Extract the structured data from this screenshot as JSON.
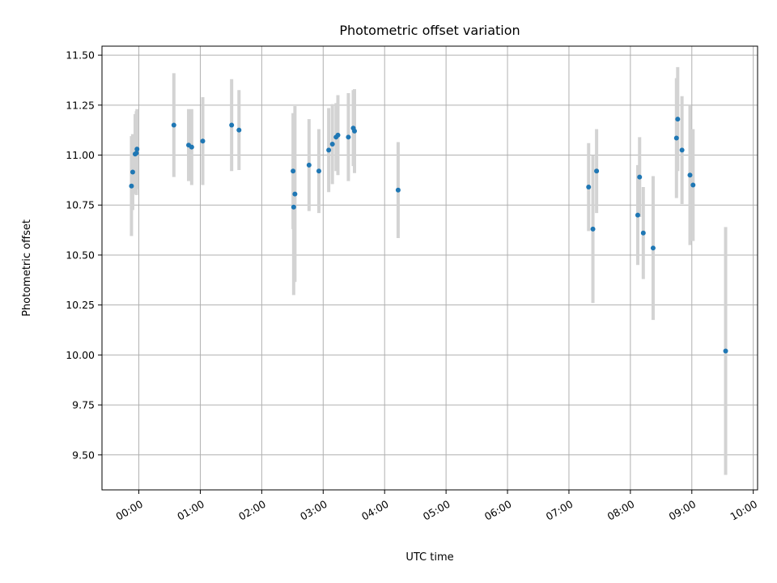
{
  "chart_data": {
    "type": "scatter",
    "title": "Photometric offset variation",
    "xlabel": "UTC time",
    "ylabel": "Photometric offset",
    "x_unit": "hours UTC",
    "xlim": [
      -0.6,
      10.07
    ],
    "ylim": [
      9.325,
      11.545
    ],
    "grid": true,
    "x_tick_values": [
      0,
      1,
      2,
      3,
      4,
      5,
      6,
      7,
      8,
      9,
      10
    ],
    "x_tick_labels": [
      "00:00",
      "01:00",
      "02:00",
      "03:00",
      "04:00",
      "05:00",
      "06:00",
      "07:00",
      "08:00",
      "09:00",
      "10:00"
    ],
    "y_tick_values": [
      9.5,
      9.75,
      10.0,
      10.25,
      10.5,
      10.75,
      11.0,
      11.25,
      11.5
    ],
    "y_tick_labels": [
      "9.50",
      "9.75",
      "10.00",
      "10.25",
      "10.50",
      "10.75",
      "11.00",
      "11.25",
      "11.50"
    ],
    "point_color": "#1f77b4",
    "errorbar_color": "#d3d3d3",
    "points": [
      {
        "x": -0.12,
        "y": 10.845,
        "err": 0.25
      },
      {
        "x": -0.1,
        "y": 10.915,
        "err": 0.19
      },
      {
        "x": -0.06,
        "y": 11.005,
        "err": 0.2
      },
      {
        "x": -0.04,
        "y": 11.01,
        "err": 0.21
      },
      {
        "x": -0.03,
        "y": 11.03,
        "err": 0.2
      },
      {
        "x": 0.57,
        "y": 11.15,
        "err": 0.26
      },
      {
        "x": 0.81,
        "y": 11.05,
        "err": 0.18
      },
      {
        "x": 0.86,
        "y": 11.04,
        "err": 0.19
      },
      {
        "x": 1.04,
        "y": 11.07,
        "err": 0.22
      },
      {
        "x": 1.51,
        "y": 11.15,
        "err": 0.23
      },
      {
        "x": 1.63,
        "y": 11.125,
        "err": 0.2
      },
      {
        "x": 2.51,
        "y": 10.92,
        "err": 0.29
      },
      {
        "x": 2.52,
        "y": 10.74,
        "err": 0.44
      },
      {
        "x": 2.54,
        "y": 10.805,
        "err": 0.44
      },
      {
        "x": 2.77,
        "y": 10.95,
        "err": 0.23
      },
      {
        "x": 2.93,
        "y": 10.92,
        "err": 0.21
      },
      {
        "x": 3.09,
        "y": 11.025,
        "err": 0.21
      },
      {
        "x": 3.15,
        "y": 11.055,
        "err": 0.2
      },
      {
        "x": 3.21,
        "y": 11.09,
        "err": 0.17
      },
      {
        "x": 3.24,
        "y": 11.1,
        "err": 0.2
      },
      {
        "x": 3.41,
        "y": 11.09,
        "err": 0.22
      },
      {
        "x": 3.49,
        "y": 11.135,
        "err": 0.19
      },
      {
        "x": 3.51,
        "y": 11.12,
        "err": 0.21
      },
      {
        "x": 4.22,
        "y": 10.825,
        "err": 0.24
      },
      {
        "x": 7.32,
        "y": 10.84,
        "err": 0.22
      },
      {
        "x": 7.39,
        "y": 10.63,
        "err": 0.37
      },
      {
        "x": 7.45,
        "y": 10.92,
        "err": 0.21
      },
      {
        "x": 8.12,
        "y": 10.7,
        "err": 0.25
      },
      {
        "x": 8.15,
        "y": 10.89,
        "err": 0.2
      },
      {
        "x": 8.21,
        "y": 10.61,
        "err": 0.23
      },
      {
        "x": 8.37,
        "y": 10.535,
        "err": 0.36
      },
      {
        "x": 8.75,
        "y": 11.085,
        "err": 0.3
      },
      {
        "x": 8.77,
        "y": 11.18,
        "err": 0.26
      },
      {
        "x": 8.84,
        "y": 11.025,
        "err": 0.27
      },
      {
        "x": 8.97,
        "y": 10.9,
        "err": 0.35
      },
      {
        "x": 9.02,
        "y": 10.85,
        "err": 0.28
      },
      {
        "x": 9.55,
        "y": 10.02,
        "err": 0.62
      }
    ]
  }
}
